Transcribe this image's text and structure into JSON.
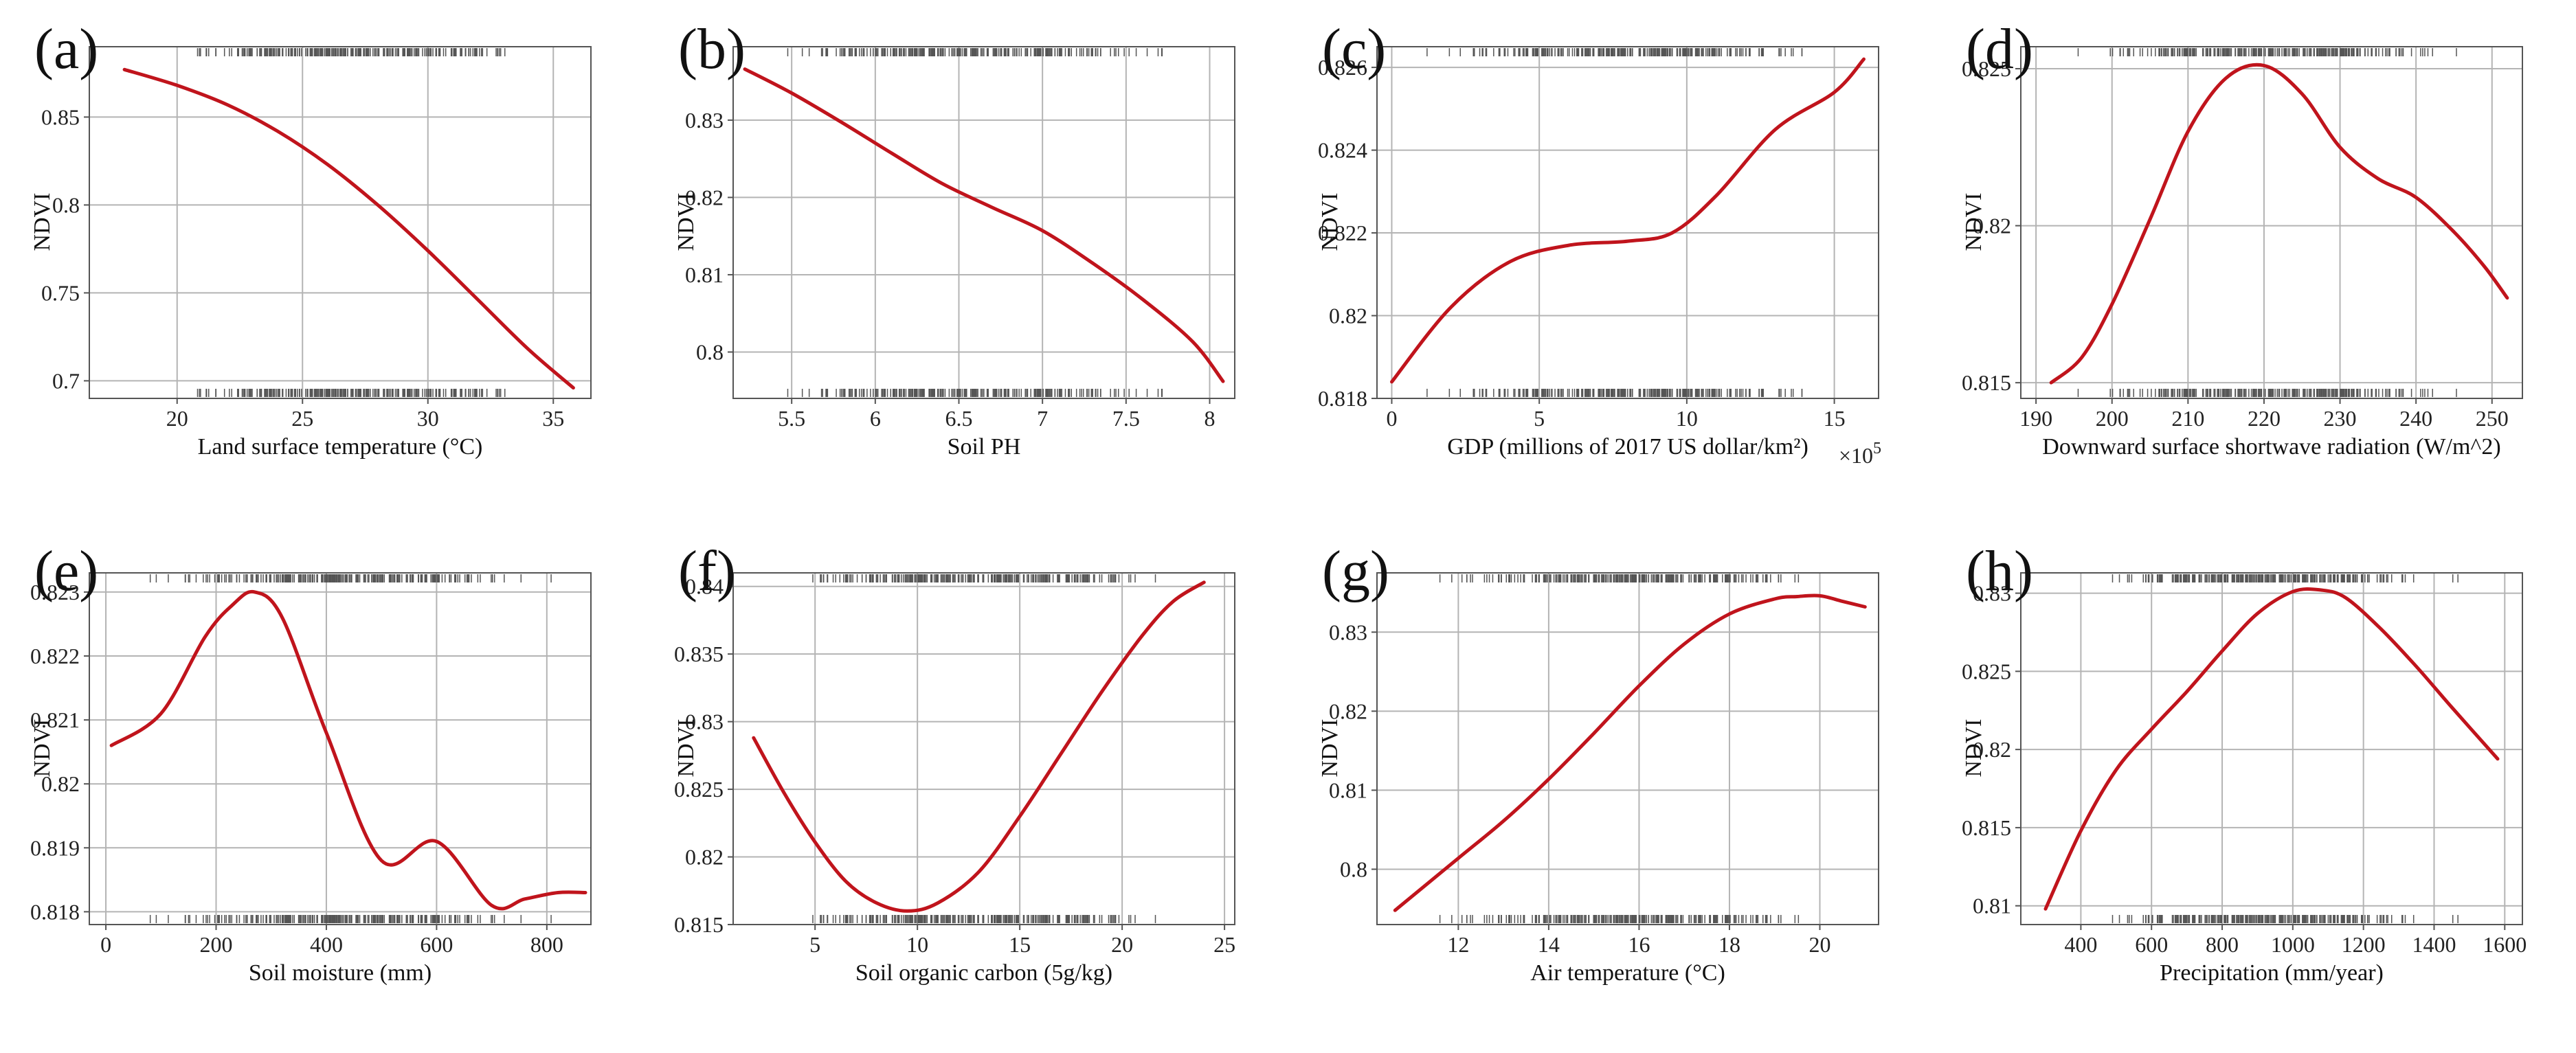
{
  "figure": {
    "colors": {
      "curve": "#c0141c",
      "grid": "#b4b4b4",
      "frame": "#555555",
      "rug": "#555555"
    }
  },
  "chart_data": [
    {
      "type": "line",
      "panel": "(a)",
      "title": "",
      "xlabel": "Land surface temperature (°C)",
      "ylabel": "NDVI",
      "xlim": [
        16.5,
        36.5
      ],
      "ylim": [
        0.69,
        0.89
      ],
      "xticks": [
        20,
        25,
        30,
        35
      ],
      "xtick_labels": [
        "20",
        "25",
        "30",
        "35"
      ],
      "yticks": [
        0.7,
        0.75,
        0.8,
        0.85
      ],
      "ytick_labels": [
        "0.7",
        "0.75",
        "0.8",
        "0.85"
      ],
      "x": [
        17.9,
        20,
        22,
        24,
        26,
        28,
        30,
        32,
        34,
        35.8
      ],
      "y": [
        0.877,
        0.868,
        0.857,
        0.842,
        0.823,
        0.8,
        0.774,
        0.746,
        0.718,
        0.696
      ],
      "x_multiplier": ""
    },
    {
      "type": "line",
      "panel": "(b)",
      "title": "",
      "xlabel": "Soil PH",
      "ylabel": "NDVI",
      "xlim": [
        5.15,
        8.15
      ],
      "ylim": [
        0.794,
        0.8395
      ],
      "xticks": [
        5.5,
        6,
        6.5,
        7,
        7.5,
        8
      ],
      "xtick_labels": [
        "5.5",
        "6",
        "6.5",
        "7",
        "7.5",
        "8"
      ],
      "yticks": [
        0.8,
        0.81,
        0.82,
        0.83
      ],
      "ytick_labels": [
        "0.8",
        "0.81",
        "0.82",
        "0.83"
      ],
      "x": [
        5.22,
        5.5,
        5.8,
        6.1,
        6.4,
        6.7,
        7.0,
        7.3,
        7.6,
        7.9,
        8.08
      ],
      "y": [
        0.8366,
        0.8335,
        0.8297,
        0.8257,
        0.8218,
        0.8187,
        0.8157,
        0.8115,
        0.8068,
        0.8013,
        0.7962
      ],
      "x_multiplier": ""
    },
    {
      "type": "line",
      "panel": "(c)",
      "title": "",
      "xlabel": "GDP (millions of 2017 US dollar/km²)",
      "ylabel": "NDVI",
      "xlim": [
        -0.5,
        16.5
      ],
      "ylim": [
        0.818,
        0.8265
      ],
      "xticks": [
        0,
        5,
        10,
        15
      ],
      "xtick_labels": [
        "0",
        "5",
        "10",
        "15"
      ],
      "yticks": [
        0.818,
        0.82,
        0.822,
        0.824,
        0.826
      ],
      "ytick_labels": [
        "0.818",
        "0.82",
        "0.822",
        "0.824",
        "0.826"
      ],
      "x": [
        0,
        2,
        4,
        6,
        8,
        9.5,
        11,
        13,
        15,
        16
      ],
      "y": [
        0.8184,
        0.8202,
        0.8213,
        0.8217,
        0.8218,
        0.822,
        0.8229,
        0.8245,
        0.8254,
        0.8262
      ],
      "x_multiplier": "×10",
      "x_multiplier_exp": "5"
    },
    {
      "type": "line",
      "panel": "(d)",
      "title": "",
      "xlabel": "Downward surface shortwave radiation (W/m^2)",
      "ylabel": "NDVI",
      "xlim": [
        188,
        254
      ],
      "ylim": [
        0.8145,
        0.8257
      ],
      "xticks": [
        190,
        200,
        210,
        220,
        230,
        240,
        250
      ],
      "xtick_labels": [
        "190",
        "200",
        "210",
        "220",
        "230",
        "240",
        "250"
      ],
      "yticks": [
        0.815,
        0.82,
        0.825
      ],
      "ytick_labels": [
        "0.815",
        "0.82",
        "0.825"
      ],
      "x": [
        192,
        196,
        200,
        205,
        210,
        215,
        220,
        225,
        230,
        235,
        240,
        245,
        249,
        252
      ],
      "y": [
        0.815,
        0.8158,
        0.8175,
        0.8202,
        0.823,
        0.8247,
        0.8251,
        0.8242,
        0.8225,
        0.8215,
        0.8209,
        0.8198,
        0.8187,
        0.8177
      ],
      "x_multiplier": ""
    },
    {
      "type": "line",
      "panel": "(e)",
      "title": "",
      "xlabel": "Soil moisture (mm)",
      "ylabel": "NDVI",
      "xlim": [
        -30,
        880
      ],
      "ylim": [
        0.8178,
        0.8233
      ],
      "xticks": [
        0,
        200,
        400,
        600,
        800
      ],
      "xtick_labels": [
        "0",
        "200",
        "400",
        "600",
        "800"
      ],
      "yticks": [
        0.818,
        0.819,
        0.82,
        0.821,
        0.822,
        0.823
      ],
      "ytick_labels": [
        "0.818",
        "0.819",
        "0.82",
        "0.821",
        "0.822",
        "0.823"
      ],
      "x": [
        10,
        100,
        180,
        230,
        270,
        320,
        400,
        500,
        600,
        700,
        760,
        820,
        870
      ],
      "y": [
        0.8206,
        0.8211,
        0.8223,
        0.8228,
        0.823,
        0.8226,
        0.8208,
        0.8188,
        0.8191,
        0.8181,
        0.8182,
        0.8183,
        0.8183
      ],
      "x_multiplier": ""
    },
    {
      "type": "line",
      "panel": "(f)",
      "title": "",
      "xlabel": "Soil organic carbon (5g/kg)",
      "ylabel": "NDVI",
      "xlim": [
        1,
        25.5
      ],
      "ylim": [
        0.815,
        0.841
      ],
      "xticks": [
        5,
        10,
        15,
        20,
        25
      ],
      "xtick_labels": [
        "5",
        "10",
        "15",
        "20",
        "25"
      ],
      "yticks": [
        0.815,
        0.82,
        0.825,
        0.83,
        0.835,
        0.84
      ],
      "ytick_labels": [
        "0.815",
        "0.82",
        "0.825",
        "0.83",
        "0.835",
        "0.84"
      ],
      "x": [
        2,
        3.5,
        5,
        6.5,
        8,
        9.5,
        11,
        13,
        15,
        17,
        19,
        21,
        22.5,
        24
      ],
      "y": [
        0.8288,
        0.8247,
        0.8211,
        0.8182,
        0.8166,
        0.816,
        0.8166,
        0.8189,
        0.823,
        0.8276,
        0.8322,
        0.8364,
        0.8389,
        0.8403
      ],
      "x_multiplier": ""
    },
    {
      "type": "line",
      "panel": "(g)",
      "title": "",
      "xlabel": "Air temperature (°C)",
      "ylabel": "NDVI",
      "xlim": [
        10.2,
        21.3
      ],
      "ylim": [
        0.793,
        0.8375
      ],
      "xticks": [
        12,
        14,
        16,
        18,
        20
      ],
      "xtick_labels": [
        "12",
        "14",
        "16",
        "18",
        "20"
      ],
      "yticks": [
        0.8,
        0.81,
        0.82,
        0.83
      ],
      "ytick_labels": [
        "0.8",
        "0.81",
        "0.82",
        "0.83"
      ],
      "x": [
        10.6,
        12,
        13,
        14,
        15,
        16,
        17,
        18,
        19,
        19.5,
        20,
        20.5,
        21
      ],
      "y": [
        0.7948,
        0.8014,
        0.8061,
        0.8114,
        0.8172,
        0.8232,
        0.8285,
        0.8323,
        0.8342,
        0.8345,
        0.8346,
        0.8339,
        0.8332
      ],
      "x_multiplier": ""
    },
    {
      "type": "line",
      "panel": "(h)",
      "title": "",
      "xlabel": "Precipitation (mm/year)",
      "ylabel": "NDVI",
      "xlim": [
        230,
        1650
      ],
      "ylim": [
        0.8088,
        0.8313
      ],
      "xticks": [
        400,
        600,
        800,
        1000,
        1200,
        1400,
        1600
      ],
      "xtick_labels": [
        "400",
        "600",
        "800",
        "1000",
        "1200",
        "1400",
        "1600"
      ],
      "yticks": [
        0.81,
        0.815,
        0.82,
        0.825,
        0.83
      ],
      "ytick_labels": [
        "0.81",
        "0.815",
        "0.82",
        "0.825",
        "0.83"
      ],
      "x": [
        300,
        400,
        500,
        600,
        700,
        800,
        900,
        1000,
        1080,
        1150,
        1250,
        1350,
        1450,
        1580
      ],
      "y": [
        0.8098,
        0.8148,
        0.8187,
        0.8213,
        0.8237,
        0.8263,
        0.8287,
        0.8301,
        0.8302,
        0.8297,
        0.8277,
        0.8253,
        0.8227,
        0.8194
      ],
      "x_multiplier": ""
    }
  ]
}
